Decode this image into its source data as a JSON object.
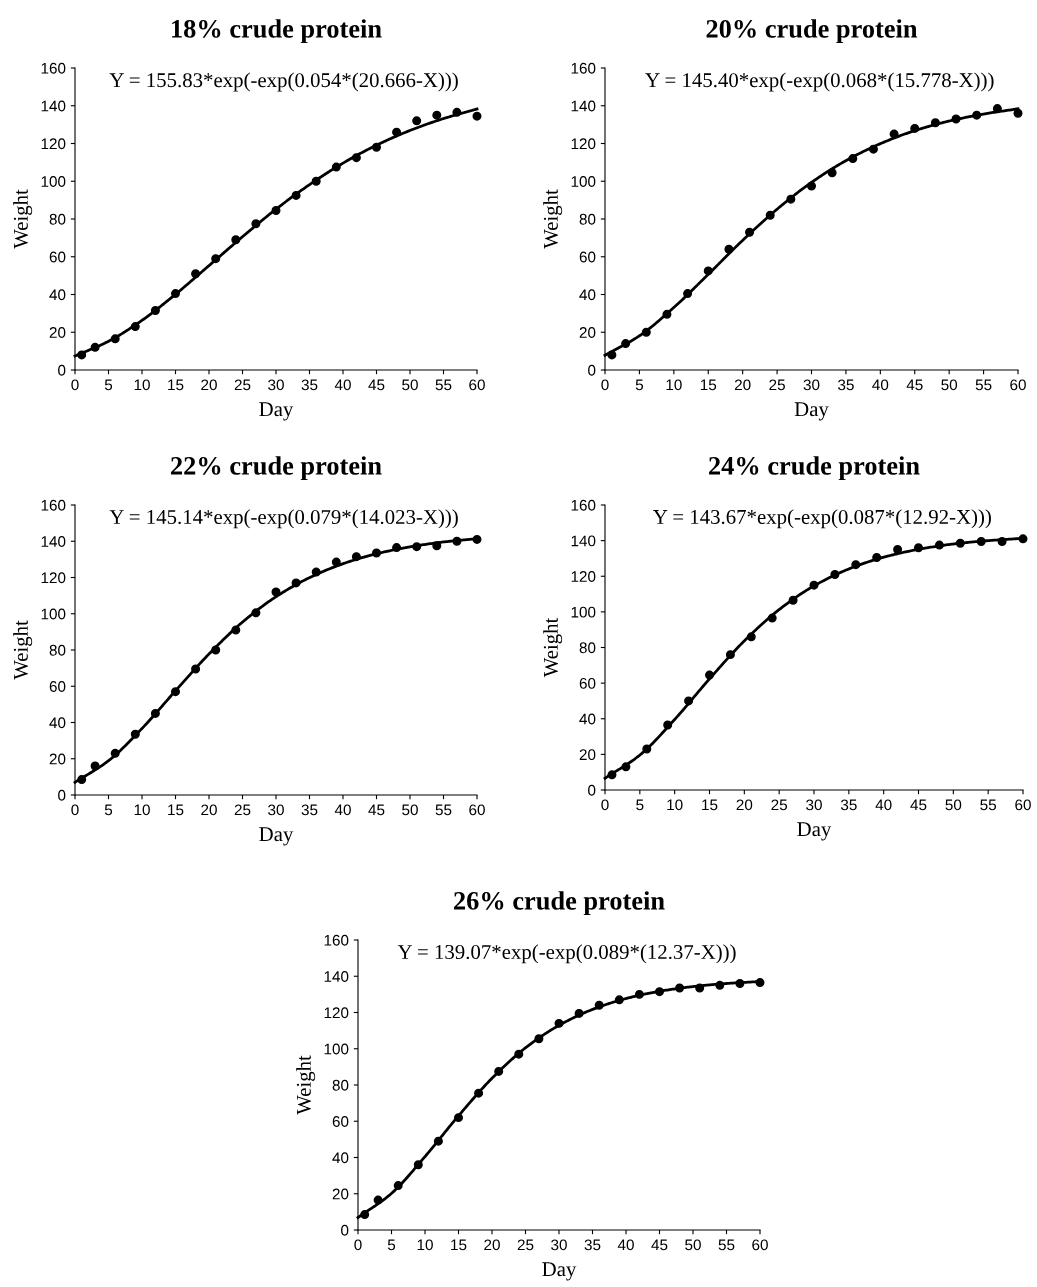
{
  "chart_data": [
    {
      "type": "scatter",
      "title": "18% crude protein",
      "xlabel": "Day",
      "ylabel": "Weight",
      "xlim": [
        0,
        60
      ],
      "ylim": [
        0,
        160
      ],
      "xticks": [
        0,
        5,
        10,
        15,
        20,
        25,
        30,
        35,
        40,
        45,
        50,
        55,
        60
      ],
      "yticks": [
        0,
        20,
        40,
        60,
        80,
        100,
        120,
        140,
        160
      ],
      "annotations": [
        "Y = 155.83*exp(-exp(0.054*(20.666-X)))"
      ],
      "series": [
        {
          "marker": "circle",
          "color": "#000000",
          "x": [
            1,
            3,
            6,
            9,
            12,
            15,
            18,
            21,
            24,
            27,
            30,
            33,
            36,
            39,
            42,
            45,
            48,
            51,
            54,
            57,
            60
          ],
          "values": [
            8,
            12,
            16.5,
            23,
            31.5,
            40.5,
            51,
            59,
            69,
            77.5,
            84.5,
            92.5,
            100,
            107.5,
            112.5,
            118,
            126,
            132,
            135,
            136.5,
            134.5
          ]
        },
        {
          "type": "line",
          "color": "#000000",
          "x": [
            0,
            5,
            10,
            15,
            20,
            25,
            30,
            35,
            40,
            45,
            50,
            55,
            60
          ],
          "values": [
            7.4,
            15.2,
            26.3,
            40.1,
            55.3,
            70.6,
            85.2,
            98.2,
            109.6,
            119.1,
            126.9,
            133.2,
            138.3
          ]
        }
      ]
    },
    {
      "type": "scatter",
      "title": "20% crude protein",
      "xlabel": "Day",
      "ylabel": "Weight",
      "xlim": [
        0,
        60
      ],
      "ylim": [
        0,
        160
      ],
      "xticks": [
        0,
        5,
        10,
        15,
        20,
        25,
        30,
        35,
        40,
        45,
        50,
        55,
        60
      ],
      "yticks": [
        0,
        20,
        40,
        60,
        80,
        100,
        120,
        140,
        160
      ],
      "annotations": [
        "Y = 145.40*exp(-exp(0.068*(15.778-X)))"
      ],
      "series": [
        {
          "marker": "circle",
          "color": "#000000",
          "x": [
            1,
            3,
            6,
            9,
            12,
            15,
            18,
            21,
            24,
            27,
            30,
            33,
            36,
            39,
            42,
            45,
            48,
            51,
            54,
            57,
            60
          ],
          "values": [
            8,
            14,
            20,
            29.5,
            40.5,
            52.5,
            64,
            73,
            82,
            90.5,
            97.5,
            104.5,
            112,
            117,
            125,
            128,
            131,
            133,
            135,
            138.5,
            136
          ]
        },
        {
          "type": "line",
          "color": "#000000",
          "x": [
            0,
            5,
            10,
            15,
            20,
            25,
            30,
            35,
            40,
            45,
            50,
            55,
            60
          ],
          "values": [
            7.8,
            18.1,
            33.1,
            50.7,
            68.7,
            85.2,
            99.4,
            110.9,
            119.9,
            126.8,
            131.9,
            135.6,
            138.4
          ]
        }
      ]
    },
    {
      "type": "scatter",
      "title": "22% crude protein",
      "xlabel": "Day",
      "ylabel": "Weight",
      "xlim": [
        0,
        60
      ],
      "ylim": [
        0,
        160
      ],
      "xticks": [
        0,
        5,
        10,
        15,
        20,
        25,
        30,
        35,
        40,
        45,
        50,
        55,
        60
      ],
      "yticks": [
        0,
        20,
        40,
        60,
        80,
        100,
        120,
        140,
        160
      ],
      "annotations": [
        "Y = 145.14*exp(-exp(0.079*(14.023-X)))"
      ],
      "series": [
        {
          "marker": "circle",
          "color": "#000000",
          "x": [
            1,
            3,
            6,
            9,
            12,
            15,
            18,
            21,
            24,
            27,
            30,
            33,
            36,
            39,
            42,
            45,
            48,
            51,
            54,
            57,
            60
          ],
          "values": [
            8.5,
            16,
            23,
            33.5,
            45,
            57,
            69.5,
            80,
            91,
            100.5,
            112,
            117,
            123,
            128.5,
            131.5,
            133.5,
            136.5,
            137,
            137.5,
            140,
            141
          ]
        },
        {
          "type": "line",
          "color": "#000000",
          "x": [
            0,
            5,
            10,
            15,
            20,
            25,
            30,
            35,
            40,
            45,
            50,
            55,
            60
          ],
          "values": [
            7.0,
            18.9,
            36.7,
            57.5,
            77.8,
            95.4,
            109.4,
            119.9,
            127.6,
            133.1,
            136.9,
            139.6,
            141.4
          ]
        }
      ]
    },
    {
      "type": "scatter",
      "title": "24% crude protein",
      "xlabel": "Day",
      "ylabel": "Weight",
      "xlim": [
        0,
        60
      ],
      "ylim": [
        0,
        160
      ],
      "xticks": [
        0,
        5,
        10,
        15,
        20,
        25,
        30,
        35,
        40,
        45,
        50,
        55,
        60
      ],
      "yticks": [
        0,
        20,
        40,
        60,
        80,
        100,
        120,
        140,
        160
      ],
      "annotations": [
        "Y = 143.67*exp(-exp(0.087*(12.92-X)))"
      ],
      "series": [
        {
          "marker": "circle",
          "color": "#000000",
          "x": [
            1,
            3,
            6,
            9,
            12,
            15,
            18,
            21,
            24,
            27,
            30,
            33,
            36,
            39,
            42,
            45,
            48,
            51,
            54,
            57,
            60
          ],
          "values": [
            8.5,
            13,
            23,
            36.5,
            50,
            64.5,
            76,
            86,
            96.5,
            106.5,
            115,
            121,
            126.5,
            130.5,
            135,
            136,
            137.5,
            138.5,
            139.5,
            139.5,
            141
          ]
        },
        {
          "type": "line",
          "color": "#000000",
          "x": [
            0,
            5,
            10,
            15,
            20,
            25,
            30,
            35,
            40,
            45,
            50,
            55,
            60
          ],
          "values": [
            6.6,
            19.6,
            39.6,
            62.4,
            83.7,
            101.3,
            114.6,
            124.1,
            130.7,
            135.1,
            138.1,
            140.0,
            141.3
          ]
        }
      ]
    },
    {
      "type": "scatter",
      "title": "26% crude protein",
      "xlabel": "Day",
      "ylabel": "Weight",
      "xlim": [
        0,
        60
      ],
      "ylim": [
        0,
        160
      ],
      "xticks": [
        0,
        5,
        10,
        15,
        20,
        25,
        30,
        35,
        40,
        45,
        50,
        55,
        60
      ],
      "yticks": [
        0,
        20,
        40,
        60,
        80,
        100,
        120,
        140,
        160
      ],
      "annotations": [
        "Y = 139.07*exp(-exp(0.089*(12.37-X)))"
      ],
      "series": [
        {
          "marker": "circle",
          "color": "#000000",
          "x": [
            1,
            3,
            6,
            9,
            12,
            15,
            18,
            21,
            24,
            27,
            30,
            33,
            36,
            39,
            42,
            45,
            48,
            51,
            54,
            57,
            60
          ],
          "values": [
            8.5,
            16.5,
            24.5,
            36,
            49,
            62,
            75.5,
            87.5,
            97,
            105.5,
            114,
            119.5,
            124,
            127,
            130,
            131.5,
            133.5,
            133.5,
            135,
            136,
            136.5
          ]
        },
        {
          "type": "line",
          "color": "#000000",
          "x": [
            0,
            5,
            10,
            15,
            20,
            25,
            30,
            35,
            40,
            45,
            50,
            55,
            60
          ],
          "values": [
            6.9,
            20.2,
            40.5,
            63.0,
            83.7,
            100.5,
            112.9,
            121.7,
            127.7,
            131.7,
            134.3,
            136.0,
            137.1
          ]
        }
      ]
    }
  ]
}
